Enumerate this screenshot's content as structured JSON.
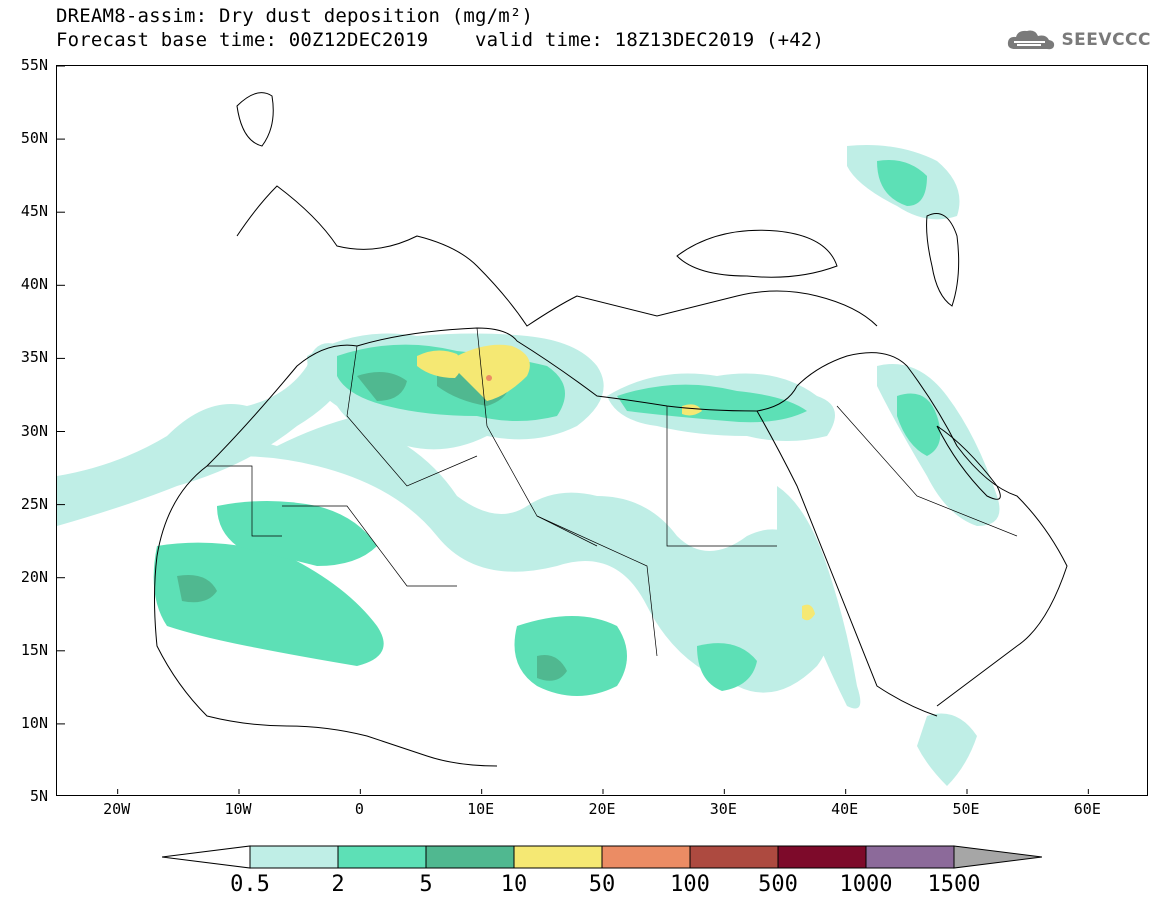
{
  "title": {
    "line1": "DREAM8-assim: Dry dust deposition (mg/m²)",
    "line2": "Forecast base time: 00Z12DEC2019",
    "valid": "valid time: 18Z13DEC2019 (+42)"
  },
  "logo": {
    "text": "SEEVCCC",
    "icon": "cloud-logo-icon"
  },
  "map": {
    "projection": "lat-lon",
    "lon_range": [
      -25,
      65
    ],
    "lat_range": [
      5,
      55
    ],
    "lat_ticks": [
      {
        "value": 55,
        "label": "55N"
      },
      {
        "value": 50,
        "label": "50N"
      },
      {
        "value": 45,
        "label": "45N"
      },
      {
        "value": 40,
        "label": "40N"
      },
      {
        "value": 35,
        "label": "35N"
      },
      {
        "value": 30,
        "label": "30N"
      },
      {
        "value": 25,
        "label": "25N"
      },
      {
        "value": 20,
        "label": "20N"
      },
      {
        "value": 15,
        "label": "15N"
      },
      {
        "value": 10,
        "label": "10N"
      },
      {
        "value": 5,
        "label": "5N"
      }
    ],
    "lon_ticks": [
      {
        "value": -20,
        "label": "20W"
      },
      {
        "value": -10,
        "label": "10W"
      },
      {
        "value": 0,
        "label": "0"
      },
      {
        "value": 10,
        "label": "10E"
      },
      {
        "value": 20,
        "label": "20E"
      },
      {
        "value": 30,
        "label": "30E"
      },
      {
        "value": 40,
        "label": "40E"
      },
      {
        "value": 50,
        "label": "50E"
      },
      {
        "value": 60,
        "label": "60E"
      }
    ]
  },
  "colorbar": {
    "under_color": "#ffffff",
    "over_color": "#a6a6a6",
    "levels": [
      {
        "label": "0.5",
        "color": "#bfeee6"
      },
      {
        "label": "2",
        "color": "#5de0b6"
      },
      {
        "label": "5",
        "color": "#50b890"
      },
      {
        "label": "10",
        "color": "#f5e873"
      },
      {
        "label": "50",
        "color": "#eb8c64"
      },
      {
        "label": "100",
        "color": "#ad4a40"
      },
      {
        "label": "500",
        "color": "#7d0a2a"
      },
      {
        "label": "1000",
        "color": "#8c6a9a"
      },
      {
        "label": "1500",
        "color": ""
      }
    ]
  }
}
